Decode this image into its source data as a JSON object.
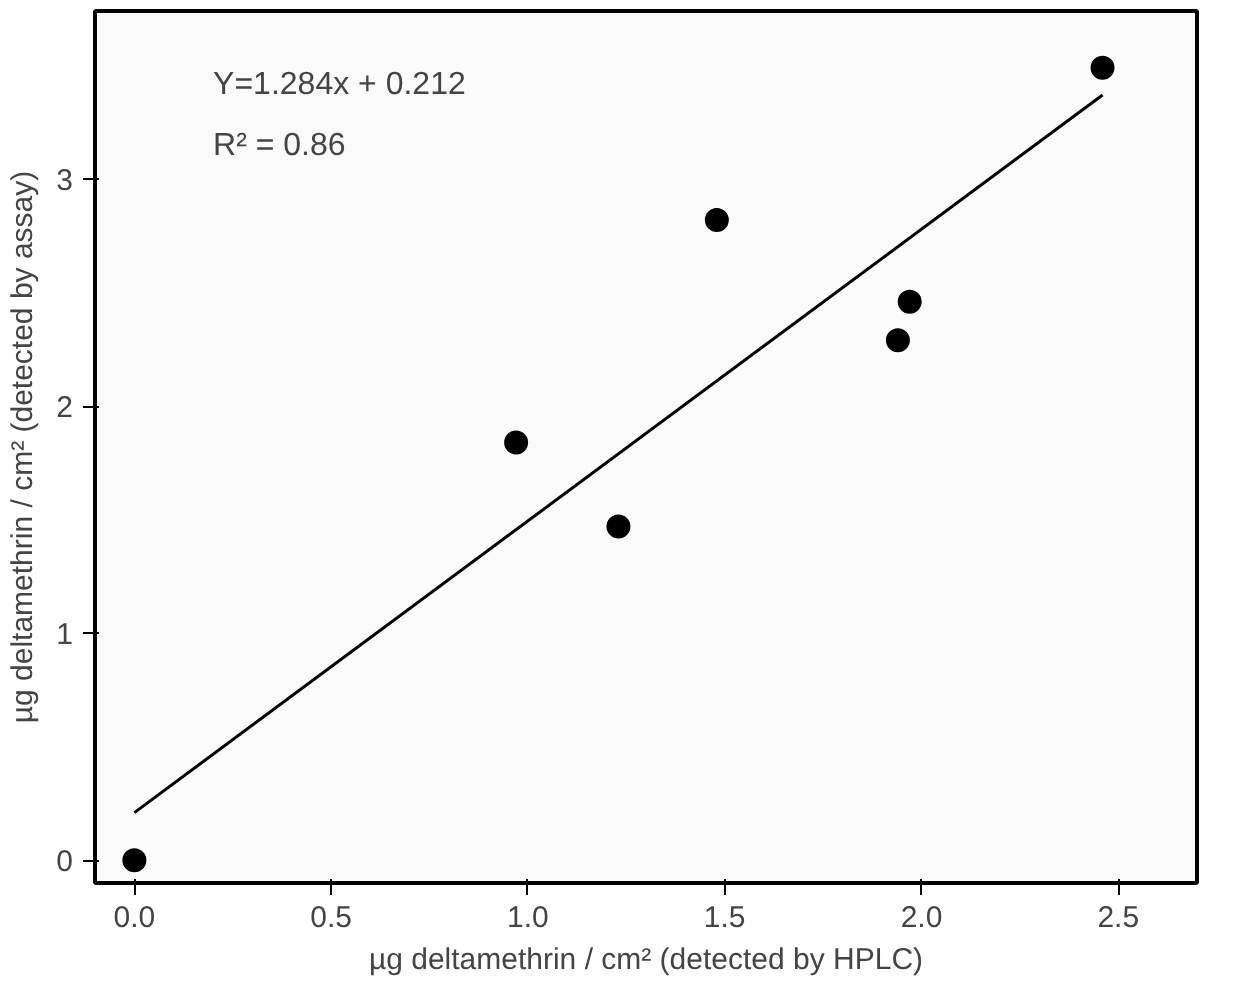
{
  "chart_data": {
    "type": "scatter",
    "xlabel": "µg deltamethrin / cm² (detected by HPLC)",
    "ylabel": "µg deltamethrin / cm² (detected by assay)",
    "annotations": [
      "Y=1.284x + 0.212",
      "R² = 0.86"
    ],
    "xlim": [
      -0.1,
      2.7
    ],
    "ylim": [
      -0.1,
      3.74
    ],
    "xticks": [
      {
        "value": 0,
        "label": "0.0"
      },
      0.5,
      {
        "value": 1,
        "label": "1.0"
      },
      1.5,
      {
        "value": 2,
        "label": "2.0"
      },
      2.5
    ],
    "yticks": [
      0,
      1,
      2,
      3
    ],
    "grid": false,
    "marker": "circle",
    "series": [
      {
        "color": "#000000",
        "x": [
          0,
          0.97,
          1.23,
          1.48,
          1.94,
          1.97,
          2.46
        ],
        "values": [
          0,
          1.84,
          1.47,
          2.82,
          2.29,
          2.46,
          3.49
        ]
      },
      {
        "type": "line",
        "color": "#000000",
        "line_style": "solid",
        "marker": "none",
        "x": [
          0,
          2.46
        ],
        "values": [
          0.21,
          3.37
        ]
      }
    ]
  }
}
